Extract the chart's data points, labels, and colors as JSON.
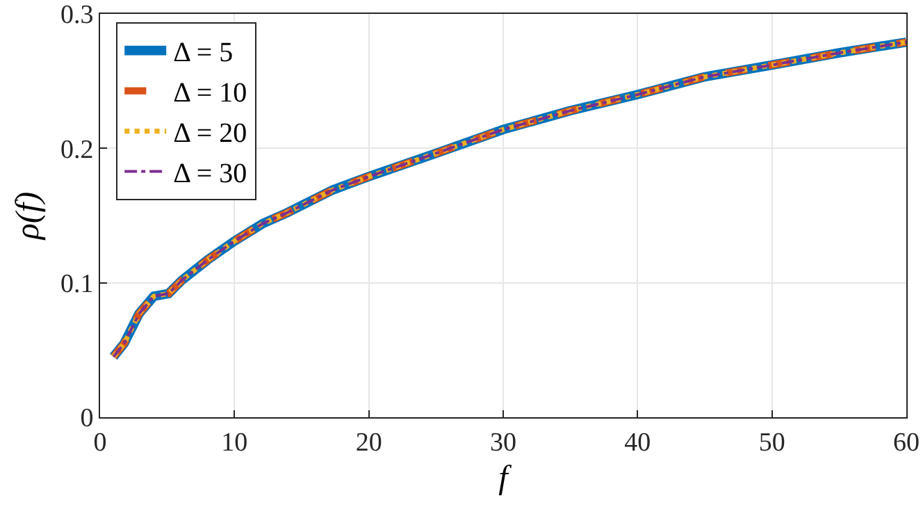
{
  "chart_data": {
    "type": "line",
    "xlabel": "f",
    "ylabel": "ρ(f)",
    "x": [
      1,
      1.8,
      2.9,
      4,
      5.1,
      6.1,
      8,
      10,
      12.1,
      13.9,
      17.3,
      20,
      25.2,
      30,
      35,
      40,
      44.9,
      50,
      55,
      60
    ],
    "series": [
      {
        "name": "Δ = 5",
        "color": "#0072bd",
        "line_style": "solid",
        "values": [
          0.045,
          0.055,
          0.077,
          0.09,
          0.092,
          0.102,
          0.117,
          0.131,
          0.144,
          0.152,
          0.169,
          0.179,
          0.197,
          0.214,
          0.228,
          0.24,
          0.253,
          0.262,
          0.271,
          0.279
        ]
      },
      {
        "name": "Δ = 10",
        "color": "#d95319",
        "line_style": "dashed",
        "values": [
          0.045,
          0.055,
          0.077,
          0.09,
          0.092,
          0.102,
          0.117,
          0.131,
          0.144,
          0.152,
          0.169,
          0.179,
          0.197,
          0.214,
          0.228,
          0.24,
          0.253,
          0.262,
          0.271,
          0.279
        ]
      },
      {
        "name": "Δ = 20",
        "color": "#edb120",
        "line_style": "dotted",
        "values": [
          0.045,
          0.055,
          0.077,
          0.09,
          0.092,
          0.102,
          0.117,
          0.131,
          0.144,
          0.152,
          0.169,
          0.179,
          0.197,
          0.214,
          0.228,
          0.24,
          0.253,
          0.262,
          0.271,
          0.279
        ]
      },
      {
        "name": "Δ = 30",
        "color": "#7e2f8e",
        "line_style": "dashdot",
        "values": [
          0.045,
          0.055,
          0.077,
          0.09,
          0.092,
          0.102,
          0.117,
          0.131,
          0.144,
          0.152,
          0.169,
          0.179,
          0.197,
          0.214,
          0.228,
          0.24,
          0.253,
          0.262,
          0.271,
          0.279
        ]
      }
    ],
    "xlim": [
      0,
      60
    ],
    "xticks": [
      0,
      10,
      20,
      30,
      40,
      50,
      60
    ],
    "ylim": [
      0,
      0.3
    ],
    "yticks": [
      0,
      0.1,
      0.2,
      0.3
    ],
    "grid": true,
    "legend": "top left"
  }
}
